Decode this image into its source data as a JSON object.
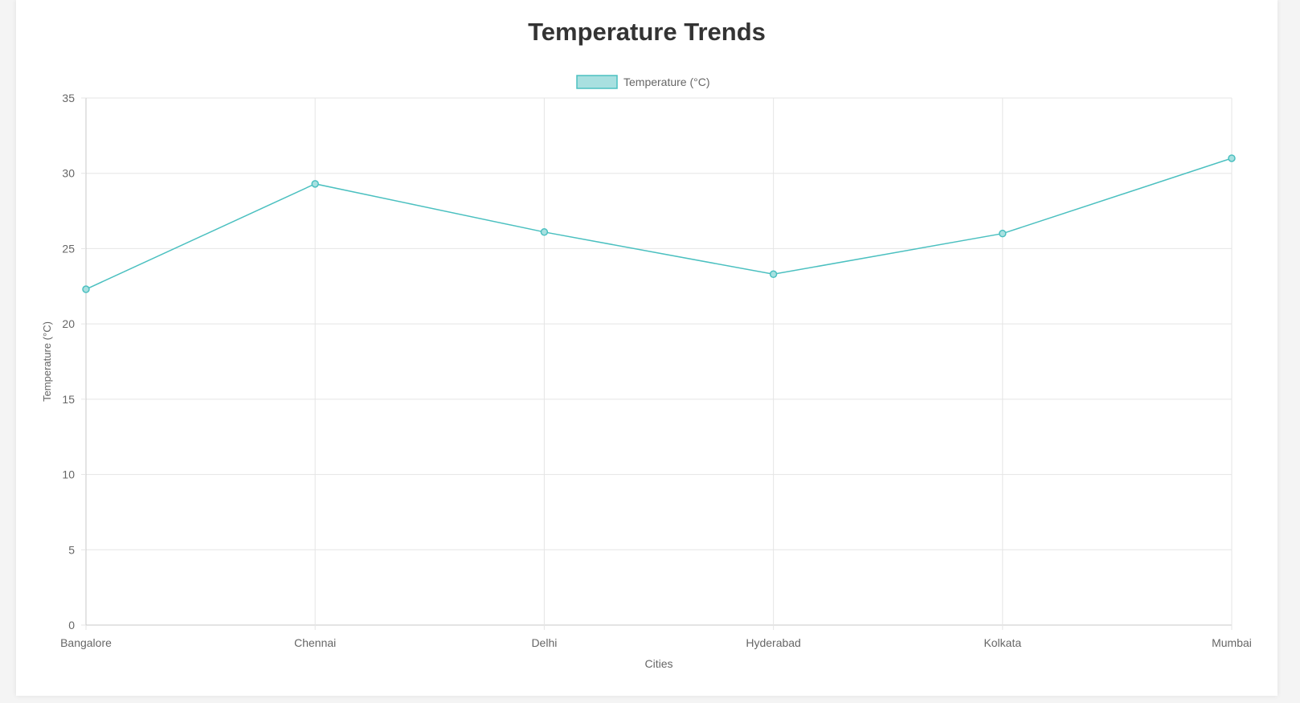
{
  "chart_data": {
    "type": "line",
    "title": "Temperature Trends",
    "xlabel": "Cities",
    "ylabel": "Temperature (°C)",
    "categories": [
      "Bangalore",
      "Chennai",
      "Delhi",
      "Hyderabad",
      "Kolkata",
      "Mumbai"
    ],
    "series": [
      {
        "name": "Temperature (°C)",
        "values": [
          22.3,
          29.3,
          26.1,
          23.3,
          26.0,
          31.0
        ]
      }
    ],
    "ylim": [
      0,
      35
    ],
    "yticks": [
      0,
      5,
      10,
      15,
      20,
      25,
      30,
      35
    ],
    "grid": true,
    "legend_position": "top-center",
    "colors": {
      "line": "#4bc0c0",
      "fill": "#a8e0e0",
      "grid": "#e5e5e5",
      "axis": "#c8c8c8",
      "tick_text": "#666666",
      "title_text": "#333333"
    }
  }
}
